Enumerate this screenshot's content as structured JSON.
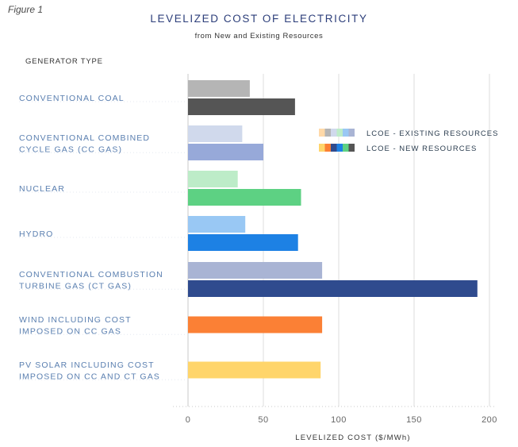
{
  "figure_label": "Figure 1",
  "chart_data": {
    "type": "bar",
    "orientation": "horizontal",
    "title": "LEVELIZED COST OF ELECTRICITY",
    "subtitle": "from New and Existing Resources",
    "category_axis_title": "GENERATOR TYPE",
    "xlabel": "LEVELIZED COST ($/MWh)",
    "xlim": [
      0,
      200
    ],
    "xticks": [
      0,
      50,
      100,
      150,
      200
    ],
    "grid": true,
    "legend_position": "right",
    "categories": [
      {
        "label": [
          "CONVENTIONAL COAL"
        ],
        "existing": 41,
        "new": 71,
        "existing_color": "#b5b5b5",
        "new_color": "#555555"
      },
      {
        "label": [
          "CONVENTIONAL COMBINED",
          "CYCLE GAS (CC GAS)"
        ],
        "existing": 36,
        "new": 50,
        "existing_color": "#d0d9ec",
        "new_color": "#97a9d9"
      },
      {
        "label": [
          "NUCLEAR"
        ],
        "existing": 33,
        "new": 75,
        "existing_color": "#bdecc8",
        "new_color": "#5dd183"
      },
      {
        "label": [
          "HYDRO"
        ],
        "existing": 38,
        "new": 73,
        "existing_color": "#99c8f4",
        "new_color": "#1d81e4"
      },
      {
        "label": [
          "CONVENTIONAL COMBUSTION",
          "TURBINE GAS (CT GAS)"
        ],
        "existing": 89,
        "new": 192,
        "existing_color": "#a9b4d4",
        "new_color": "#2f4b8e"
      },
      {
        "label": [
          "WIND INCLUDING COST",
          "IMPOSED ON CC GAS"
        ],
        "existing": null,
        "new": 89,
        "existing_color": null,
        "new_color": "#fb8035"
      },
      {
        "label": [
          "PV SOLAR INCLUDING COST",
          "IMPOSED ON CC AND CT GAS"
        ],
        "existing": null,
        "new": 88,
        "existing_color": null,
        "new_color": "#ffd56b"
      }
    ],
    "series": [
      {
        "name": "LCOE - EXISTING RESOURCES",
        "swatch_colors": [
          "#ffd9a8",
          "#b5b5b5",
          "#d0d9ec",
          "#bdecc8",
          "#99c8f4",
          "#a9b4d4"
        ]
      },
      {
        "name": "LCOE - NEW RESOURCES",
        "swatch_colors": [
          "#ffd56b",
          "#fb8035",
          "#2f4b8e",
          "#1d81e4",
          "#5dd183",
          "#555555"
        ]
      }
    ]
  }
}
